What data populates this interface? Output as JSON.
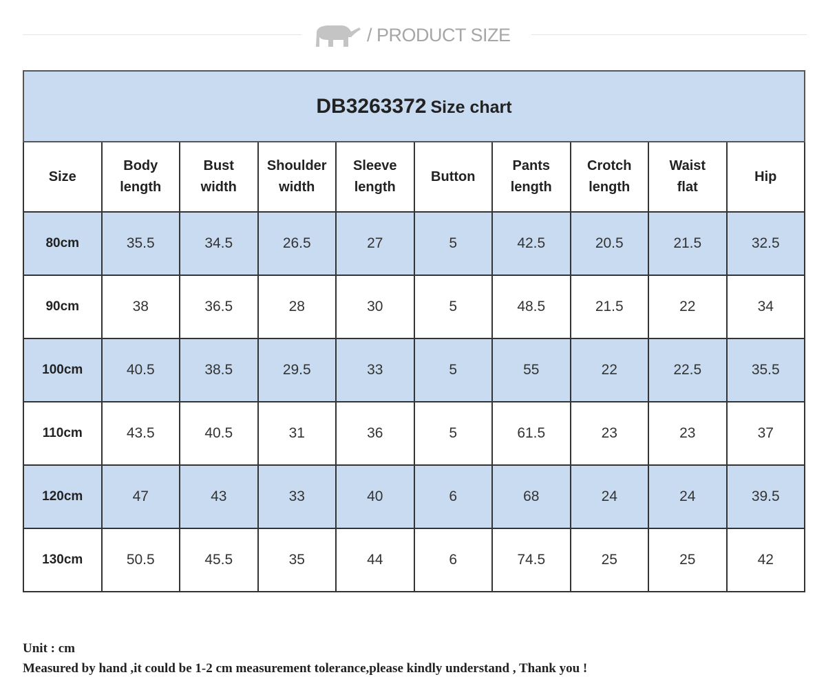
{
  "header": {
    "title": "/ PRODUCT SIZE"
  },
  "table": {
    "title_code": "DB3263372",
    "title_text": "Size chart",
    "columns": [
      "Size",
      "Body\nlength",
      "Bust\nwidth",
      "Shoulder\nwidth",
      "Sleeve\nlength",
      "Button",
      "Pants\nlength",
      "Crotch\nlength",
      "Waist\nflat",
      "Hip"
    ],
    "rows": [
      [
        "80cm",
        35.5,
        34.5,
        26.5,
        27,
        5,
        42.5,
        20.5,
        21.5,
        32.5
      ],
      [
        "90cm",
        38,
        36.5,
        28,
        30,
        5,
        48.5,
        21.5,
        22,
        34
      ],
      [
        "100cm",
        40.5,
        38.5,
        29.5,
        33,
        5,
        55,
        22,
        22.5,
        35.5
      ],
      [
        "110cm",
        43.5,
        40.5,
        31,
        36,
        5,
        61.5,
        23,
        23,
        37
      ],
      [
        "120cm",
        47,
        43,
        33,
        40,
        6,
        68,
        24,
        24,
        39.5
      ],
      [
        "130cm",
        50.5,
        45.5,
        35,
        44,
        6,
        74.5,
        25,
        25,
        42
      ]
    ]
  },
  "notes": [
    "Unit : cm",
    "Measured by hand ,it could be 1-2 cm measurement tolerance,please kindly understand , Thank you !"
  ]
}
